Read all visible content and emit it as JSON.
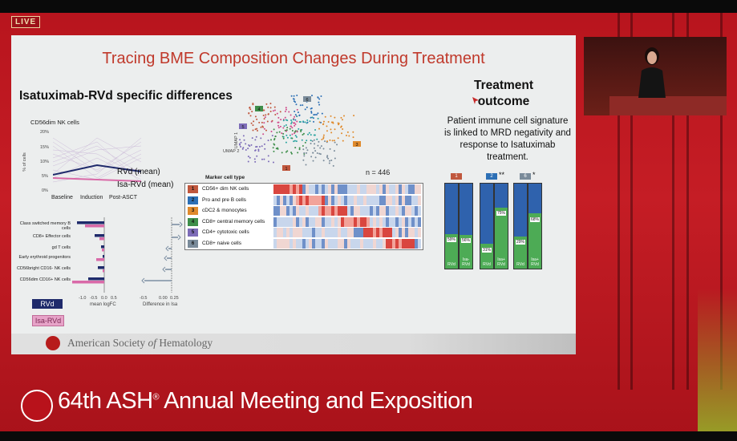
{
  "live_badge": "LIVE",
  "slide": {
    "title": "Tracing BME Composition Changes During Treatment",
    "left_heading": "Isatuximab-RVd specific differences",
    "right_heading_line1": "Treatment",
    "right_heading_line2": "outcome",
    "right_note": "Patient immune cell signature is linked to MRD negativity and response to Isatuximab treatment.",
    "n_label": "n = 446",
    "ash_text_pre": "American Society ",
    "ash_text_italic": "of",
    "ash_text_post": " Hematology",
    "line_chart": {
      "panel_title": "CD56dim NK cells",
      "y_label": "% of cells",
      "y_ticks": [
        "20%",
        "15%",
        "10%",
        "5%",
        "0%"
      ],
      "x_ticks": [
        "Baseline",
        "Induction",
        "Post-ASCT"
      ],
      "legend_rvd": "RVd (mean)",
      "legend_isa": "Isa-RVd (mean)"
    },
    "logfc": {
      "rows": [
        "Class switched memory B cells",
        "CD8+ Effector cells",
        "gd T cells",
        "Early erythroid progenitors",
        "CD56bright CD16- NK cells",
        "CD56dim CD16+ NK cells"
      ],
      "x_label_left": "mean logFC",
      "x_label_right": "Difference in Isa",
      "ticks_left": [
        "-1.0",
        "-0.5",
        "0.0",
        "0.5"
      ],
      "ticks_right": [
        "-0.5",
        "0.00",
        "0.25"
      ],
      "legend_rvd": "RVd",
      "legend_isa": "Isa-RVd",
      "color_rvd": "#1f2a6b",
      "color_isa": "#d96aa8"
    },
    "umap": {
      "axis_x": "UMAP 2",
      "axis_y": "UMAP 1",
      "cluster_tags": [
        "4",
        "5",
        "6",
        "3",
        "1"
      ]
    },
    "heatmap": {
      "header": "Marker cell type",
      "rows": [
        {
          "num": "1",
          "label": "CD56+ dim NK cells",
          "color": "#c0573d"
        },
        {
          "num": "2",
          "label": "Pro and pre B cells",
          "color": "#2c6fb5"
        },
        {
          "num": "3",
          "label": "cDC2 & monocytes",
          "color": "#e08a2c"
        },
        {
          "num": "4",
          "label": "CD8+ central memory cells",
          "color": "#3e8e4a"
        },
        {
          "num": "5",
          "label": "CD4+ cytotoxic cells",
          "color": "#7d6cb8"
        },
        {
          "num": "6",
          "label": "CD8+ naive cells",
          "color": "#7a8b9a"
        }
      ]
    },
    "outcome_bars": {
      "groups": [
        {
          "tag": "1",
          "tag_color": "#c0573d",
          "stars": "",
          "bars": [
            {
              "label": "RVd",
              "green": 41,
              "pct": "59%"
            },
            {
              "label": "Isa-RVd",
              "green": 40,
              "pct": "56%"
            }
          ]
        },
        {
          "tag": "2",
          "tag_color": "#2c6fb5",
          "stars": "**",
          "bars": [
            {
              "label": "RVd",
              "green": 29,
              "pct": "31%"
            },
            {
              "label": "Isa+ RVd",
              "green": 72,
              "pct": "75%"
            }
          ]
        },
        {
          "tag": "6",
          "tag_color": "#7a8b9a",
          "stars": "*",
          "bars": [
            {
              "label": "RVd",
              "green": 38,
              "pct": "29%"
            },
            {
              "label": "Isa+ RVd",
              "green": 65,
              "pct": "68%"
            }
          ]
        }
      ]
    }
  },
  "footer": {
    "text_pre": "64th ASH",
    "text_reg": "®",
    "text_post": " Annual Meeting and Exposition"
  }
}
